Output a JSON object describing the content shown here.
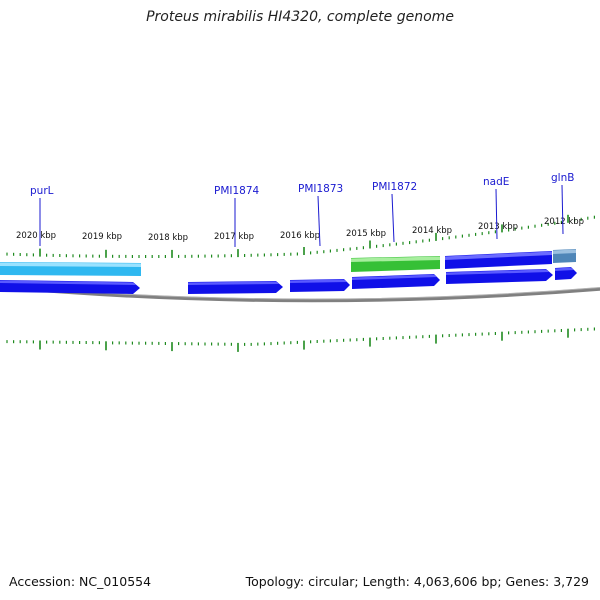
{
  "title": "Proteus mirabilis HI4320, complete genome",
  "accession_text": "Accession: NC_010554",
  "topology_text": "Topology: circular; Length: 4,063,606 bp; Genes: 3,729",
  "colors": {
    "backbone": "#808080",
    "tick": "#1f8a1f",
    "gene_label": "#1a1ad0",
    "cds": "#1010e8",
    "cds_light": "#2fb8f0",
    "cds_green": "#36c036",
    "cds_steel": "#4f86b8"
  },
  "kbp_labels": [
    "2020 kbp",
    "2019 kbp",
    "2018 kbp",
    "2017 kbp",
    "2016 kbp",
    "2015 kbp",
    "2014 kbp",
    "2013 kbp",
    "2012 kbp"
  ],
  "gene_labels": [
    "purL",
    "PMI1874",
    "PMI1873",
    "PMI1872",
    "nadE",
    "glnB"
  ]
}
